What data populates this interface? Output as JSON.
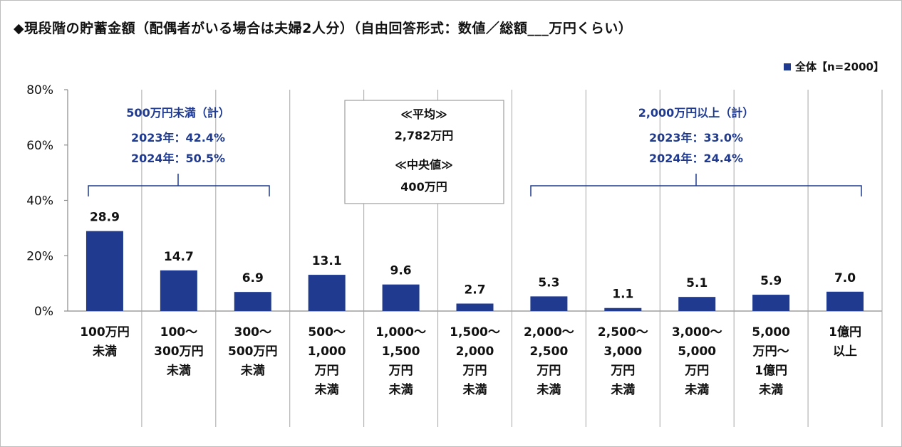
{
  "title": "◆現段階の貯蓄金額（配偶者がいる場合は夫婦2人分）（自由回答形式：数値／総額___万円くらい）",
  "legend": "全体【n=2000】",
  "colors": {
    "bar": "#1f3a8f",
    "annotation": "#1f3a8f"
  },
  "y_ticks": [
    "0%",
    "20%",
    "40%",
    "60%",
    "80%"
  ],
  "chart_data": {
    "type": "bar",
    "ylim": [
      0,
      80
    ],
    "grid": false,
    "categories": [
      [
        "100万円",
        "未満"
      ],
      [
        "100～",
        "300万円",
        "未満"
      ],
      [
        "300～",
        "500万円",
        "未満"
      ],
      [
        "500～",
        "1,000",
        "万円",
        "未満"
      ],
      [
        "1,000～",
        "1,500",
        "万円",
        "未満"
      ],
      [
        "1,500～",
        "2,000",
        "万円",
        "未満"
      ],
      [
        "2,000～",
        "2,500",
        "万円",
        "未満"
      ],
      [
        "2,500～",
        "3,000",
        "万円",
        "未満"
      ],
      [
        "3,000～",
        "5,000",
        "万円",
        "未満"
      ],
      [
        "5,000",
        "万円～",
        "1億円",
        "未満"
      ],
      [
        "1億円",
        "以上"
      ]
    ],
    "values": [
      28.9,
      14.7,
      6.9,
      13.1,
      9.6,
      2.7,
      5.3,
      1.1,
      5.1,
      5.9,
      7.0
    ],
    "value_labels": [
      "28.9",
      "14.7",
      "6.9",
      "13.1",
      "9.6",
      "2.7",
      "5.3",
      "1.1",
      "5.1",
      "5.9",
      "7.0"
    ]
  },
  "annotations": {
    "under500": {
      "label": "500万円未満（計）",
      "line1": "2023年：42.4%",
      "line2": "2024年：50.5%"
    },
    "over2000": {
      "label": "2,000万円以上（計）",
      "line1": "2023年：33.0%",
      "line2": "2024年：24.4%"
    },
    "stats": {
      "mean_label": "≪平均≫",
      "mean_value": "2,782万円",
      "median_label": "≪中央値≫",
      "median_value": "400万円"
    }
  }
}
